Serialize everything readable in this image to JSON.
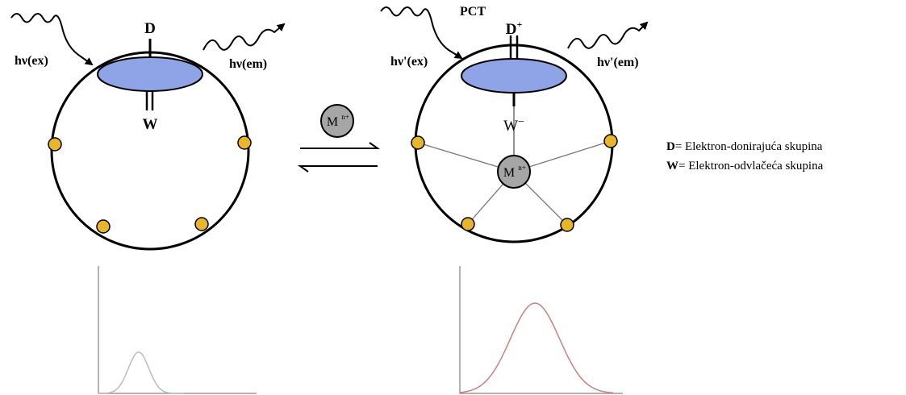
{
  "left_complex": {
    "donor_label": "D",
    "acceptor_label": "W",
    "excitation_label": "hν(ex)",
    "emission_label": "hν(em)"
  },
  "right_complex": {
    "process_label": "PCT",
    "donor_label": "D",
    "donor_charge": "+",
    "acceptor_label": "W",
    "acceptor_charge": "−",
    "excitation_label": "hν'(ex)",
    "emission_label": "hν'(em)",
    "metal_label": "M",
    "metal_charge": "n+"
  },
  "equilibrium": {
    "metal_label": "M",
    "metal_charge": "n+"
  },
  "legend": {
    "donor_key": "D",
    "donor_text": "= Elektron-donirajuća skupina",
    "acceptor_key": "W",
    "acceptor_text": "= Elektron-odvlačeća skupina"
  },
  "spectra": {
    "left_peak_relative": 0.33,
    "right_peak_relative": 0.8
  },
  "colors": {
    "fluorophore_fill": "#8ea4e6",
    "binding_site_fill": "#e9b62a",
    "metal_fill": "#a6a6a6",
    "left_spectrum": "#b9bcc6",
    "right_spectrum": "#c98080"
  }
}
